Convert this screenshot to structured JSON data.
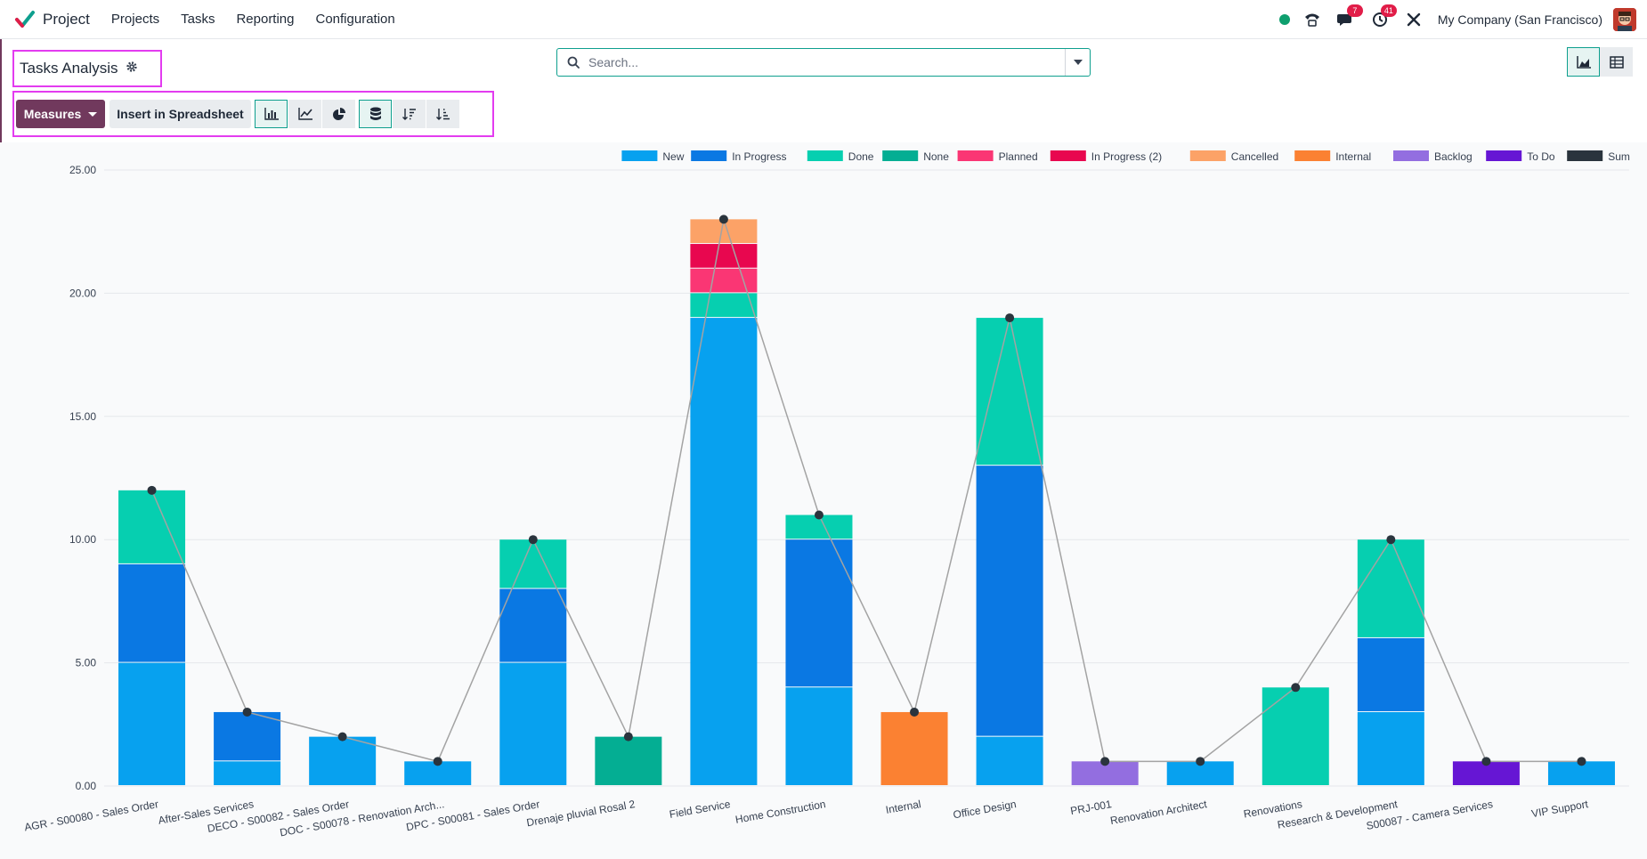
{
  "navbar": {
    "app_name": "Project",
    "menu": [
      "Projects",
      "Tasks",
      "Reporting",
      "Configuration"
    ],
    "messages_badge": "7",
    "activities_badge": "41",
    "company": "My Company (San Francisco)"
  },
  "control_panel": {
    "title": "Tasks Analysis",
    "search_placeholder": "Search...",
    "measures_label": "Measures",
    "insert_label": "Insert in Spreadsheet"
  },
  "colors": {
    "New": "#07a1ef",
    "In Progress": "#0a78e3",
    "Done": "#06cfb0",
    "None": "#04ae93",
    "Planned": "#fa3674",
    "In Progress (2)": "#e8074f",
    "Cancelled": "#fca267",
    "Internal": "#fb8132",
    "Backlog": "#936ee0",
    "To Do": "#6616d4",
    "Sum": "#2a343d"
  },
  "chart_data": {
    "type": "bar",
    "stacked": true,
    "y_range": [
      0,
      25
    ],
    "y_ticks": [
      "0.00",
      "5.00",
      "10.00",
      "15.00",
      "20.00",
      "25.00"
    ],
    "legend_position": "top-right",
    "grid": true,
    "categories": [
      "AGR - S00080 - Sales Order",
      "After-Sales Services",
      "DECO - S00082 - Sales Order",
      "DOC - S00078 - Renovation Arch...",
      "DPC - S00081 - Sales Order",
      "Drenaje pluvial Rosal 2",
      "Field Service",
      "Home Construction",
      "Internal",
      "Office Design",
      "PRJ-001",
      "Renovation Architect",
      "Renovations",
      "Research & Development",
      "S00087 - Camera Services",
      "VIP Support"
    ],
    "series": [
      {
        "name": "New",
        "values": [
          5,
          1,
          2,
          1,
          5,
          0,
          19,
          4,
          0,
          2,
          0,
          1,
          0,
          3,
          0,
          1
        ]
      },
      {
        "name": "In Progress",
        "values": [
          4,
          2,
          0,
          0,
          3,
          0,
          0,
          6,
          0,
          11,
          0,
          0,
          0,
          3,
          0,
          0
        ]
      },
      {
        "name": "Done",
        "values": [
          3,
          0,
          0,
          0,
          2,
          0,
          1,
          1,
          0,
          6,
          0,
          0,
          4,
          4,
          0,
          0
        ]
      },
      {
        "name": "None",
        "values": [
          0,
          0,
          0,
          0,
          0,
          2,
          0,
          0,
          0,
          0,
          0,
          0,
          0,
          0,
          0,
          0
        ]
      },
      {
        "name": "Planned",
        "values": [
          0,
          0,
          0,
          0,
          0,
          0,
          1,
          0,
          0,
          0,
          0,
          0,
          0,
          0,
          0,
          0
        ]
      },
      {
        "name": "In Progress (2)",
        "values": [
          0,
          0,
          0,
          0,
          0,
          0,
          1,
          0,
          0,
          0,
          0,
          0,
          0,
          0,
          0,
          0
        ]
      },
      {
        "name": "Cancelled",
        "values": [
          0,
          0,
          0,
          0,
          0,
          0,
          1,
          0,
          0,
          0,
          0,
          0,
          0,
          0,
          0,
          0
        ]
      },
      {
        "name": "Internal",
        "values": [
          0,
          0,
          0,
          0,
          0,
          0,
          0,
          0,
          3,
          0,
          0,
          0,
          0,
          0,
          0,
          0
        ]
      },
      {
        "name": "Backlog",
        "values": [
          0,
          0,
          0,
          0,
          0,
          0,
          0,
          0,
          0,
          0,
          1,
          0,
          0,
          0,
          0,
          0
        ]
      },
      {
        "name": "To Do",
        "values": [
          0,
          0,
          0,
          0,
          0,
          0,
          0,
          0,
          0,
          0,
          0,
          0,
          0,
          0,
          1,
          0
        ]
      }
    ],
    "sum_series": {
      "name": "Sum",
      "type": "line",
      "values": [
        12,
        3,
        2,
        1,
        10,
        2,
        23,
        11,
        3,
        19,
        1,
        1,
        4,
        10,
        1,
        1
      ]
    }
  }
}
